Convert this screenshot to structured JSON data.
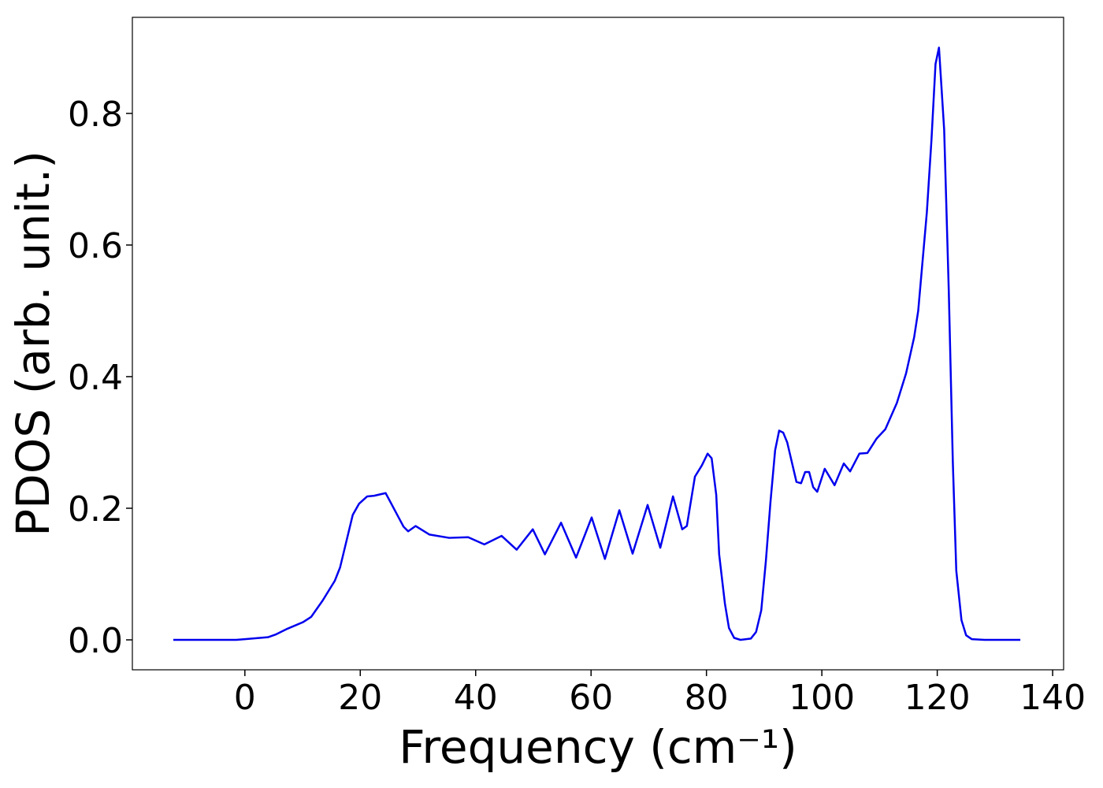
{
  "chart_data": {
    "type": "line",
    "x_label": "Frequency (cm⁻¹)",
    "y_label": "PDOS (arb. unit.)",
    "xlim": [
      -19.5,
      141.9
    ],
    "ylim": [
      -0.0455,
      0.946
    ],
    "xticks": [
      0,
      20,
      40,
      60,
      80,
      100,
      120,
      140
    ],
    "yticks": [
      {
        "value": 0,
        "label": "0.0"
      },
      {
        "value": 0.2,
        "label": "0.2"
      },
      {
        "value": 0.4,
        "label": "0.4"
      },
      {
        "value": 0.6,
        "label": "0.6"
      },
      {
        "value": 0.8,
        "label": "0.8"
      }
    ],
    "x": [
      -12.4,
      -1.5,
      0,
      4,
      5.3,
      7.4,
      10.1,
      11.5,
      13.5,
      15.6,
      16.5,
      17.6,
      18.7,
      19.8,
      21.2,
      22.4,
      24.4,
      27.5,
      28.3,
      29.6,
      32,
      35.4,
      38.7,
      41.5,
      44.5,
      47.1,
      49.9,
      52,
      54.8,
      57.4,
      60.1,
      62.4,
      64.9,
      67.2,
      69.8,
      72,
      74.2,
      75.8,
      76.6,
      78,
      79.2,
      80.2,
      80.9,
      81.7,
      82.2,
      83.2,
      83.9,
      84.8,
      85.9,
      87.7,
      88.6,
      89.5,
      90.3,
      91.1,
      91.9,
      92.6,
      93.3,
      94,
      95.6,
      96.4,
      97.1,
      97.8,
      98.5,
      99.2,
      100.5,
      102.2,
      103.8,
      104.9,
      106.5,
      107.9,
      109.5,
      111,
      113,
      114.6,
      116,
      116.7,
      117.3,
      118.2,
      119,
      119.7,
      120.3,
      121.2,
      122,
      122.7,
      123.3,
      124.2,
      125,
      126,
      128.2,
      134.4
    ],
    "series": [
      {
        "name": "PDOS",
        "color": "#0000ee",
        "values": [
          0,
          0,
          0.001,
          0.004,
          0.008,
          0.017,
          0.027,
          0.035,
          0.06,
          0.09,
          0.11,
          0.15,
          0.19,
          0.207,
          0.218,
          0.219,
          0.223,
          0.172,
          0.165,
          0.173,
          0.16,
          0.155,
          0.156,
          0.145,
          0.158,
          0.137,
          0.168,
          0.13,
          0.178,
          0.125,
          0.186,
          0.123,
          0.197,
          0.131,
          0.205,
          0.14,
          0.218,
          0.168,
          0.173,
          0.248,
          0.265,
          0.283,
          0.276,
          0.22,
          0.13,
          0.055,
          0.018,
          0.003,
          0,
          0.002,
          0.012,
          0.045,
          0.12,
          0.21,
          0.288,
          0.318,
          0.315,
          0.3,
          0.24,
          0.238,
          0.255,
          0.255,
          0.232,
          0.225,
          0.26,
          0.235,
          0.268,
          0.256,
          0.283,
          0.284,
          0.306,
          0.32,
          0.36,
          0.405,
          0.46,
          0.5,
          0.56,
          0.65,
          0.76,
          0.875,
          0.9,
          0.775,
          0.53,
          0.27,
          0.105,
          0.03,
          0.007,
          0.001,
          0,
          0
        ]
      }
    ]
  }
}
